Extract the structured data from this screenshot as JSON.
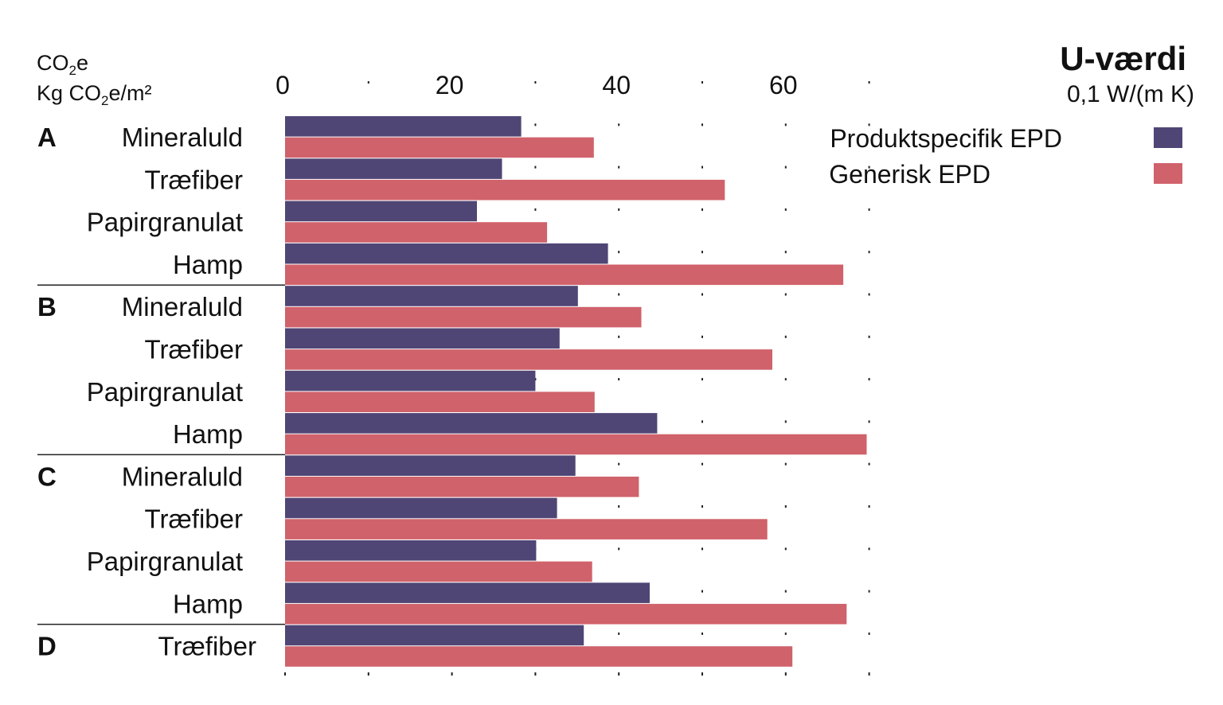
{
  "unit_label": {
    "line1_pre": "CO",
    "line1_sub": "2",
    "line1_post": "e",
    "line2_pre": "Kg CO",
    "line2_sub": "2",
    "line2_post": "e/m²"
  },
  "colors": {
    "specific": "#4f4675",
    "generic": "#d0626b"
  },
  "chart_data": {
    "type": "bar",
    "orientation": "horizontal",
    "title": "U-værdi",
    "subtitle": "0,1 W/(m K)",
    "xlim": [
      0,
      70
    ],
    "xticks": [
      0,
      20,
      40,
      60
    ],
    "grid": "dotted",
    "legend_position": "top-right",
    "groups": [
      {
        "label": "A",
        "categories": [
          "Mineraluld",
          "Træfiber",
          "Papirgranulat",
          "Hamp"
        ]
      },
      {
        "label": "B",
        "categories": [
          "Mineraluld",
          "Træfiber",
          "Papirgranulat",
          "Hamp"
        ]
      },
      {
        "label": "C",
        "categories": [
          "Mineraluld",
          "Træfiber",
          "Papirgranulat",
          "Hamp"
        ]
      },
      {
        "label": "D",
        "categories": [
          "Træfiber"
        ]
      }
    ],
    "series": [
      {
        "name": "Produktspecifik EPD",
        "values": [
          28.3,
          26.0,
          23.0,
          38.7,
          35.1,
          32.9,
          30.0,
          44.6,
          34.8,
          32.6,
          30.1,
          43.7,
          35.8
        ]
      },
      {
        "name": "Generisk EPD",
        "values": [
          37.0,
          52.7,
          31.4,
          66.9,
          42.7,
          58.4,
          37.1,
          69.7,
          42.4,
          57.8,
          36.8,
          67.3,
          60.8
        ]
      }
    ]
  }
}
